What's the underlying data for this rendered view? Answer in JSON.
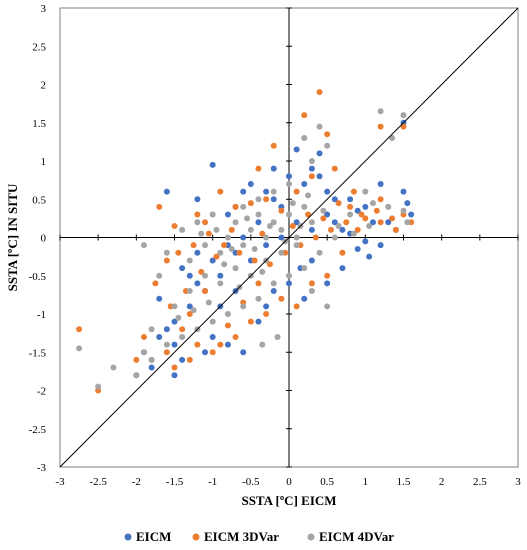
{
  "chart_data": {
    "type": "scatter",
    "title": "",
    "xlabel": "SSTA [ºC] EICM",
    "ylabel": "SSTA [ºC] IN SITU",
    "xlim": [
      -3,
      3
    ],
    "ylim": [
      -3,
      3
    ],
    "x_ticks": [
      "-3",
      "-2.5",
      "-2",
      "-1.5",
      "-1",
      "-0.5",
      "0",
      "0.5",
      "1",
      "1.5",
      "2",
      "2.5",
      "3"
    ],
    "y_ticks": [
      "-3",
      "-2.5",
      "-2",
      "-1.5",
      "-1",
      "-0.5",
      "0",
      "0.5",
      "1",
      "1.5",
      "2",
      "2.5",
      "3"
    ],
    "grid": false,
    "legend_position": "bottom",
    "reference_line": {
      "name": "1:1 line",
      "from": [
        -3,
        -3
      ],
      "to": [
        3,
        3
      ],
      "color": "#000000"
    },
    "series": [
      {
        "name": "EICM",
        "color": "#4472C4",
        "points": [
          [
            -1.6,
            0.6
          ],
          [
            -1.2,
            0.5
          ],
          [
            -1.0,
            0.95
          ],
          [
            -0.8,
            0.3
          ],
          [
            -0.6,
            0.6
          ],
          [
            -0.5,
            0.7
          ],
          [
            -0.3,
            0.6
          ],
          [
            -0.2,
            0.9
          ],
          [
            0.0,
            0.8
          ],
          [
            0.1,
            1.15
          ],
          [
            0.2,
            0.7
          ],
          [
            0.3,
            0.9
          ],
          [
            0.4,
            0.8
          ],
          [
            0.5,
            0.6
          ],
          [
            0.6,
            0.5
          ],
          [
            0.8,
            0.5
          ],
          [
            1.0,
            0.4
          ],
          [
            1.2,
            0.7
          ],
          [
            1.5,
            0.6
          ],
          [
            1.55,
            0.45
          ],
          [
            1.6,
            0.3
          ],
          [
            1.4,
            0.1
          ],
          [
            1.2,
            -0.1
          ],
          [
            1.0,
            -0.05
          ],
          [
            0.9,
            -0.15
          ],
          [
            1.1,
            0.2
          ],
          [
            1.3,
            0.2
          ],
          [
            0.7,
            0.1
          ],
          [
            0.5,
            0.3
          ],
          [
            0.3,
            0.1
          ],
          [
            0.1,
            0.2
          ],
          [
            -0.1,
            0.0
          ],
          [
            -0.3,
            -0.1
          ],
          [
            -0.5,
            -0.3
          ],
          [
            -0.7,
            -0.2
          ],
          [
            -0.9,
            -0.5
          ],
          [
            -1.1,
            -0.7
          ],
          [
            -1.3,
            -0.9
          ],
          [
            -1.5,
            -1.1
          ],
          [
            -1.7,
            -1.3
          ],
          [
            -1.9,
            -1.5
          ],
          [
            -2.0,
            -1.8
          ],
          [
            -1.8,
            -1.7
          ],
          [
            -1.6,
            -1.2
          ],
          [
            -1.4,
            -0.4
          ],
          [
            -1.2,
            -0.6
          ],
          [
            -1.0,
            -1.3
          ],
          [
            -0.8,
            -1.4
          ],
          [
            -0.6,
            -1.5
          ],
          [
            -0.4,
            -1.1
          ],
          [
            -0.2,
            -0.7
          ],
          [
            0.0,
            -0.6
          ],
          [
            0.2,
            -0.8
          ],
          [
            0.3,
            -0.3
          ],
          [
            0.5,
            -0.6
          ],
          [
            0.7,
            -0.4
          ],
          [
            -1.4,
            -1.6
          ],
          [
            -1.5,
            -1.4
          ],
          [
            -0.9,
            -0.9
          ],
          [
            -0.7,
            -0.7
          ],
          [
            1.5,
            1.5
          ],
          [
            0.4,
            1.1
          ],
          [
            -0.1,
            0.4
          ],
          [
            -0.4,
            0.2
          ],
          [
            -0.6,
            0.0
          ],
          [
            -0.8,
            -0.1
          ],
          [
            -1.0,
            -0.3
          ],
          [
            -1.2,
            -0.2
          ],
          [
            -1.3,
            -0.5
          ],
          [
            -1.7,
            -0.8
          ],
          [
            0.8,
            0.05
          ],
          [
            0.6,
            0.2
          ],
          [
            0.9,
            0.35
          ],
          [
            -0.2,
            0.5
          ],
          [
            -0.7,
            0.4
          ],
          [
            -1.5,
            -1.8
          ],
          [
            -1.1,
            -1.5
          ],
          [
            -0.3,
            -0.9
          ],
          [
            0.15,
            -0.4
          ],
          [
            1.05,
            -0.25
          ]
        ]
      },
      {
        "name": "EICM 3DVar",
        "color": "#ED7D31",
        "points": [
          [
            -2.75,
            -1.2
          ],
          [
            -2.5,
            -2.0
          ],
          [
            -1.8,
            -1.6
          ],
          [
            -1.6,
            -1.5
          ],
          [
            -1.4,
            -1.2
          ],
          [
            -1.3,
            -1.0
          ],
          [
            -1.1,
            -0.7
          ],
          [
            -1.7,
            0.4
          ],
          [
            -1.5,
            0.15
          ],
          [
            -1.2,
            0.3
          ],
          [
            -1.1,
            0.2
          ],
          [
            -0.9,
            0.6
          ],
          [
            -0.7,
            0.4
          ],
          [
            -0.5,
            0.45
          ],
          [
            -0.3,
            0.5
          ],
          [
            -0.1,
            0.35
          ],
          [
            0.1,
            0.6
          ],
          [
            0.3,
            0.8
          ],
          [
            0.4,
            1.9
          ],
          [
            0.5,
            1.35
          ],
          [
            0.6,
            0.9
          ],
          [
            0.8,
            0.4
          ],
          [
            1.0,
            0.25
          ],
          [
            1.2,
            0.2
          ],
          [
            1.4,
            0.1
          ],
          [
            1.5,
            0.3
          ],
          [
            1.2,
            0.5
          ],
          [
            1.5,
            1.45
          ],
          [
            1.2,
            1.45
          ],
          [
            1.6,
            0.2
          ],
          [
            0.2,
            1.6
          ],
          [
            -0.2,
            1.2
          ],
          [
            -0.4,
            0.9
          ],
          [
            0.9,
            0.1
          ],
          [
            0.7,
            -0.2
          ],
          [
            0.5,
            -0.5
          ],
          [
            0.3,
            -0.6
          ],
          [
            0.1,
            -0.9
          ],
          [
            -0.1,
            -0.8
          ],
          [
            -0.3,
            -1.0
          ],
          [
            -0.5,
            -1.1
          ],
          [
            -0.7,
            -1.3
          ],
          [
            -0.9,
            -1.4
          ],
          [
            -1.0,
            -1.5
          ],
          [
            -1.2,
            -1.4
          ],
          [
            -1.5,
            -1.7
          ],
          [
            -1.9,
            -1.3
          ],
          [
            -1.75,
            -0.6
          ],
          [
            -1.6,
            -0.3
          ],
          [
            -1.45,
            -0.2
          ],
          [
            -1.25,
            -0.1
          ],
          [
            -1.05,
            0.05
          ],
          [
            -0.85,
            -0.1
          ],
          [
            -0.65,
            -0.2
          ],
          [
            -0.45,
            -0.3
          ],
          [
            -0.25,
            -0.35
          ],
          [
            -0.05,
            -0.2
          ],
          [
            0.15,
            -0.1
          ],
          [
            0.35,
            0.0
          ],
          [
            0.55,
            0.1
          ],
          [
            0.75,
            0.2
          ],
          [
            0.95,
            0.3
          ],
          [
            1.15,
            0.35
          ],
          [
            1.35,
            0.25
          ],
          [
            -2.0,
            -1.6
          ],
          [
            -1.3,
            -1.6
          ],
          [
            -0.8,
            -1.15
          ],
          [
            -0.6,
            -0.85
          ],
          [
            -0.4,
            -0.6
          ],
          [
            0.25,
            0.3
          ],
          [
            -1.55,
            -0.9
          ],
          [
            -1.35,
            -0.7
          ],
          [
            -1.15,
            -0.45
          ],
          [
            -0.95,
            -0.25
          ],
          [
            -0.75,
            0.1
          ],
          [
            -0.35,
            0.05
          ],
          [
            0.05,
            0.15
          ],
          [
            0.45,
            0.25
          ],
          [
            0.65,
            0.45
          ],
          [
            0.85,
            0.6
          ]
        ]
      },
      {
        "name": "EICM 4DVar",
        "color": "#A5A5A5",
        "points": [
          [
            -2.75,
            -1.45
          ],
          [
            -2.5,
            -1.95
          ],
          [
            -2.3,
            -1.7
          ],
          [
            -2.0,
            -1.8
          ],
          [
            -1.9,
            -1.5
          ],
          [
            -1.8,
            -1.2
          ],
          [
            -1.9,
            -0.1
          ],
          [
            -1.7,
            -0.5
          ],
          [
            -1.6,
            -0.2
          ],
          [
            -1.4,
            0.1
          ],
          [
            -1.3,
            -0.3
          ],
          [
            -1.2,
            0.2
          ],
          [
            -1.1,
            -0.1
          ],
          [
            -1.0,
            0.3
          ],
          [
            -0.9,
            -0.2
          ],
          [
            -0.8,
            0.0
          ],
          [
            -0.7,
            0.2
          ],
          [
            -0.6,
            -0.1
          ],
          [
            -0.5,
            0.1
          ],
          [
            -0.4,
            0.3
          ],
          [
            -0.3,
            0.0
          ],
          [
            -0.2,
            0.2
          ],
          [
            -0.1,
            0.1
          ],
          [
            0.0,
            0.3
          ],
          [
            0.1,
            0.0
          ],
          [
            0.2,
            0.4
          ],
          [
            0.3,
            0.2
          ],
          [
            0.4,
            1.45
          ],
          [
            0.5,
            1.2
          ],
          [
            0.3,
            1.0
          ],
          [
            0.2,
            1.3
          ],
          [
            1.2,
            1.65
          ],
          [
            1.5,
            1.6
          ],
          [
            1.35,
            1.3
          ],
          [
            1.0,
            0.6
          ],
          [
            1.1,
            0.45
          ],
          [
            1.3,
            0.4
          ],
          [
            1.5,
            0.35
          ],
          [
            1.55,
            0.2
          ],
          [
            0.8,
            0.3
          ],
          [
            0.6,
            0.0
          ],
          [
            0.4,
            -0.2
          ],
          [
            0.2,
            -0.4
          ],
          [
            0.0,
            -0.5
          ],
          [
            -0.2,
            -0.6
          ],
          [
            -0.4,
            -0.8
          ],
          [
            -0.6,
            -0.9
          ],
          [
            -0.8,
            -1.0
          ],
          [
            -1.0,
            -1.1
          ],
          [
            -1.2,
            -1.2
          ],
          [
            -1.4,
            -1.3
          ],
          [
            -1.6,
            -1.4
          ],
          [
            -1.8,
            -1.6
          ],
          [
            -1.5,
            -0.9
          ],
          [
            -1.3,
            -0.7
          ],
          [
            -1.1,
            -0.5
          ],
          [
            -0.9,
            -0.6
          ],
          [
            -0.7,
            -0.4
          ],
          [
            -0.5,
            -0.5
          ],
          [
            -0.3,
            -0.3
          ],
          [
            -0.1,
            -0.2
          ],
          [
            0.1,
            -0.1
          ],
          [
            -0.6,
            0.4
          ],
          [
            -0.4,
            0.5
          ],
          [
            -0.2,
            0.6
          ],
          [
            0.0,
            0.7
          ],
          [
            0.3,
            -0.7
          ],
          [
            0.5,
            -0.9
          ],
          [
            -0.35,
            -1.4
          ],
          [
            -0.15,
            -1.3
          ],
          [
            -0.55,
            0.25
          ],
          [
            -0.45,
            -0.15
          ],
          [
            -0.25,
            0.15
          ],
          [
            -0.05,
            -0.05
          ],
          [
            0.15,
            0.15
          ],
          [
            -0.85,
            -0.35
          ],
          [
            -0.65,
            -0.65
          ],
          [
            -1.05,
            -0.85
          ],
          [
            -1.25,
            -0.95
          ],
          [
            -1.45,
            -1.05
          ],
          [
            -0.75,
            -0.15
          ],
          [
            -0.95,
            0.1
          ],
          [
            -1.15,
            0.05
          ],
          [
            -0.35,
            -0.45
          ],
          [
            0.05,
            0.45
          ],
          [
            0.25,
            0.55
          ],
          [
            0.45,
            0.35
          ],
          [
            0.65,
            0.15
          ],
          [
            0.85,
            0.05
          ],
          [
            1.05,
            0.15
          ]
        ]
      }
    ]
  }
}
